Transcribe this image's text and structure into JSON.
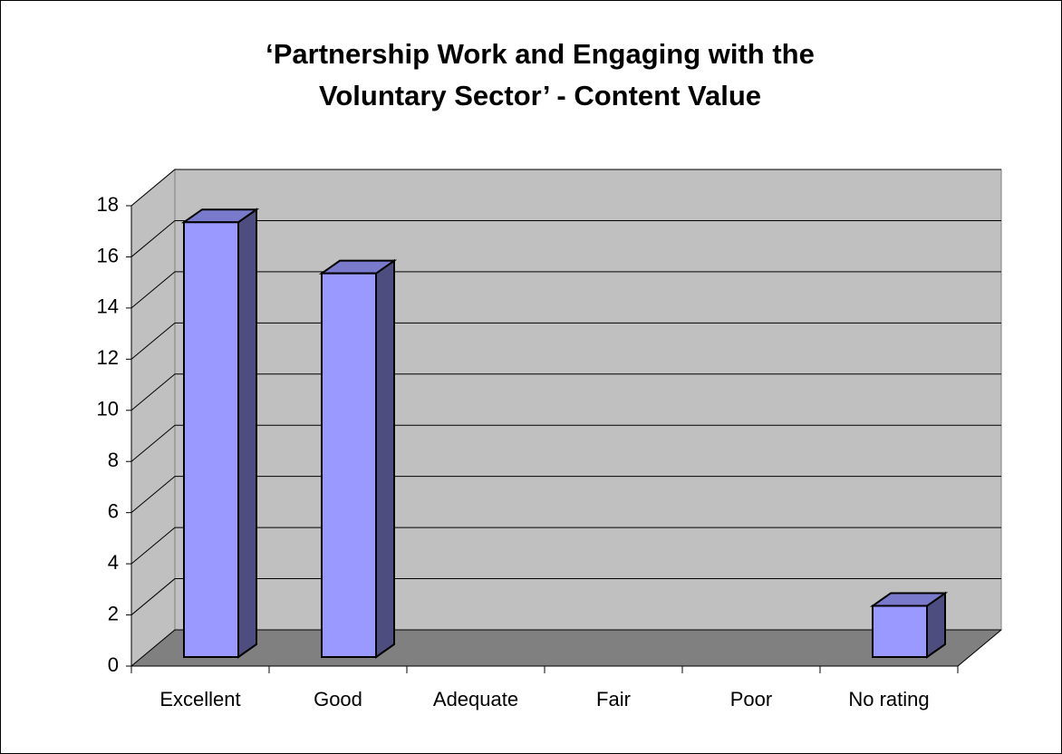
{
  "chart_data": {
    "type": "bar3d",
    "title": [
      "‘Partnership Work and Engaging with the",
      "Voluntary Sector’ - Content Value"
    ],
    "categories": [
      "Excellent",
      "Good",
      "Adequate",
      "Fair",
      "Poor",
      "No rating"
    ],
    "values": [
      17,
      15,
      0,
      0,
      0,
      2
    ],
    "color": "#9999ff",
    "ylim": [
      0,
      18
    ],
    "yticks": [
      0,
      2,
      4,
      6,
      8,
      10,
      12,
      14,
      16,
      18
    ],
    "grid": true
  }
}
